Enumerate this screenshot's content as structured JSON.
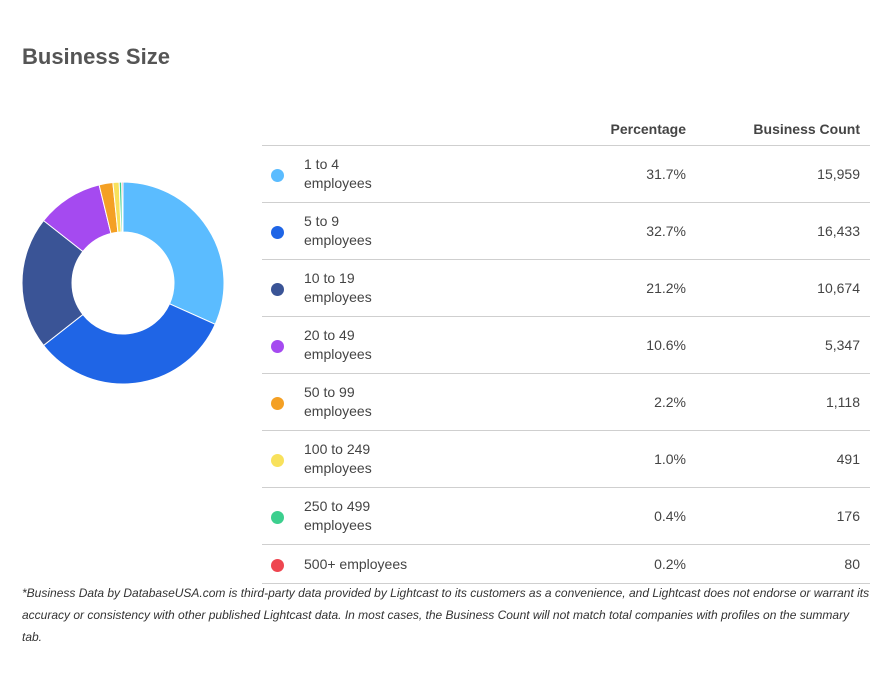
{
  "title": "Business Size",
  "table": {
    "headers": {
      "percentage": "Percentage",
      "count": "Business Count"
    },
    "rows": [
      {
        "label_line1": "1 to 4",
        "label_line2": "employees",
        "percentage": "31.7%",
        "count": "15,959",
        "color": "#5bbcff"
      },
      {
        "label_line1": "5 to 9",
        "label_line2": "employees",
        "percentage": "32.7%",
        "count": "16,433",
        "color": "#1f65e6"
      },
      {
        "label_line1": "10 to 19",
        "label_line2": "employees",
        "percentage": "21.2%",
        "count": "10,674",
        "color": "#3a5496"
      },
      {
        "label_line1": "20 to 49",
        "label_line2": "employees",
        "percentage": "10.6%",
        "count": "5,347",
        "color": "#a54af0"
      },
      {
        "label_line1": "50 to 99",
        "label_line2": "employees",
        "percentage": "2.2%",
        "count": "1,118",
        "color": "#f4a024"
      },
      {
        "label_line1": "100 to 249",
        "label_line2": "employees",
        "percentage": "1.0%",
        "count": "491",
        "color": "#f8e15c"
      },
      {
        "label_line1": "250 to 499",
        "label_line2": "employees",
        "percentage": "0.4%",
        "count": "176",
        "color": "#3ccf8e"
      },
      {
        "label_line1": "500+ employees",
        "label_line2": "",
        "percentage": "0.2%",
        "count": "80",
        "color": "#ee4650"
      }
    ]
  },
  "chart_data": {
    "type": "pie",
    "donut": true,
    "categories": [
      "1 to 4 employees",
      "5 to 9 employees",
      "10 to 19 employees",
      "20 to 49 employees",
      "50 to 99 employees",
      "100 to 249 employees",
      "250 to 499 employees",
      "500+ employees"
    ],
    "values": [
      31.7,
      32.7,
      21.2,
      10.6,
      2.2,
      1.0,
      0.4,
      0.2
    ],
    "counts": [
      15959,
      16433,
      10674,
      5347,
      1118,
      491,
      176,
      80
    ],
    "colors": [
      "#5bbcff",
      "#1f65e6",
      "#3a5496",
      "#a54af0",
      "#f4a024",
      "#f8e15c",
      "#3ccf8e",
      "#ee4650"
    ],
    "title": "Business Size",
    "legend": "right (table)"
  },
  "footnote": "*Business Data by DatabaseUSA.com is third-party data provided by Lightcast to its customers as a convenience, and Lightcast does not endorse or warrant its accuracy or consistency with other published Lightcast data. In most cases, the Business Count will not match total companies with profiles on the summary tab."
}
